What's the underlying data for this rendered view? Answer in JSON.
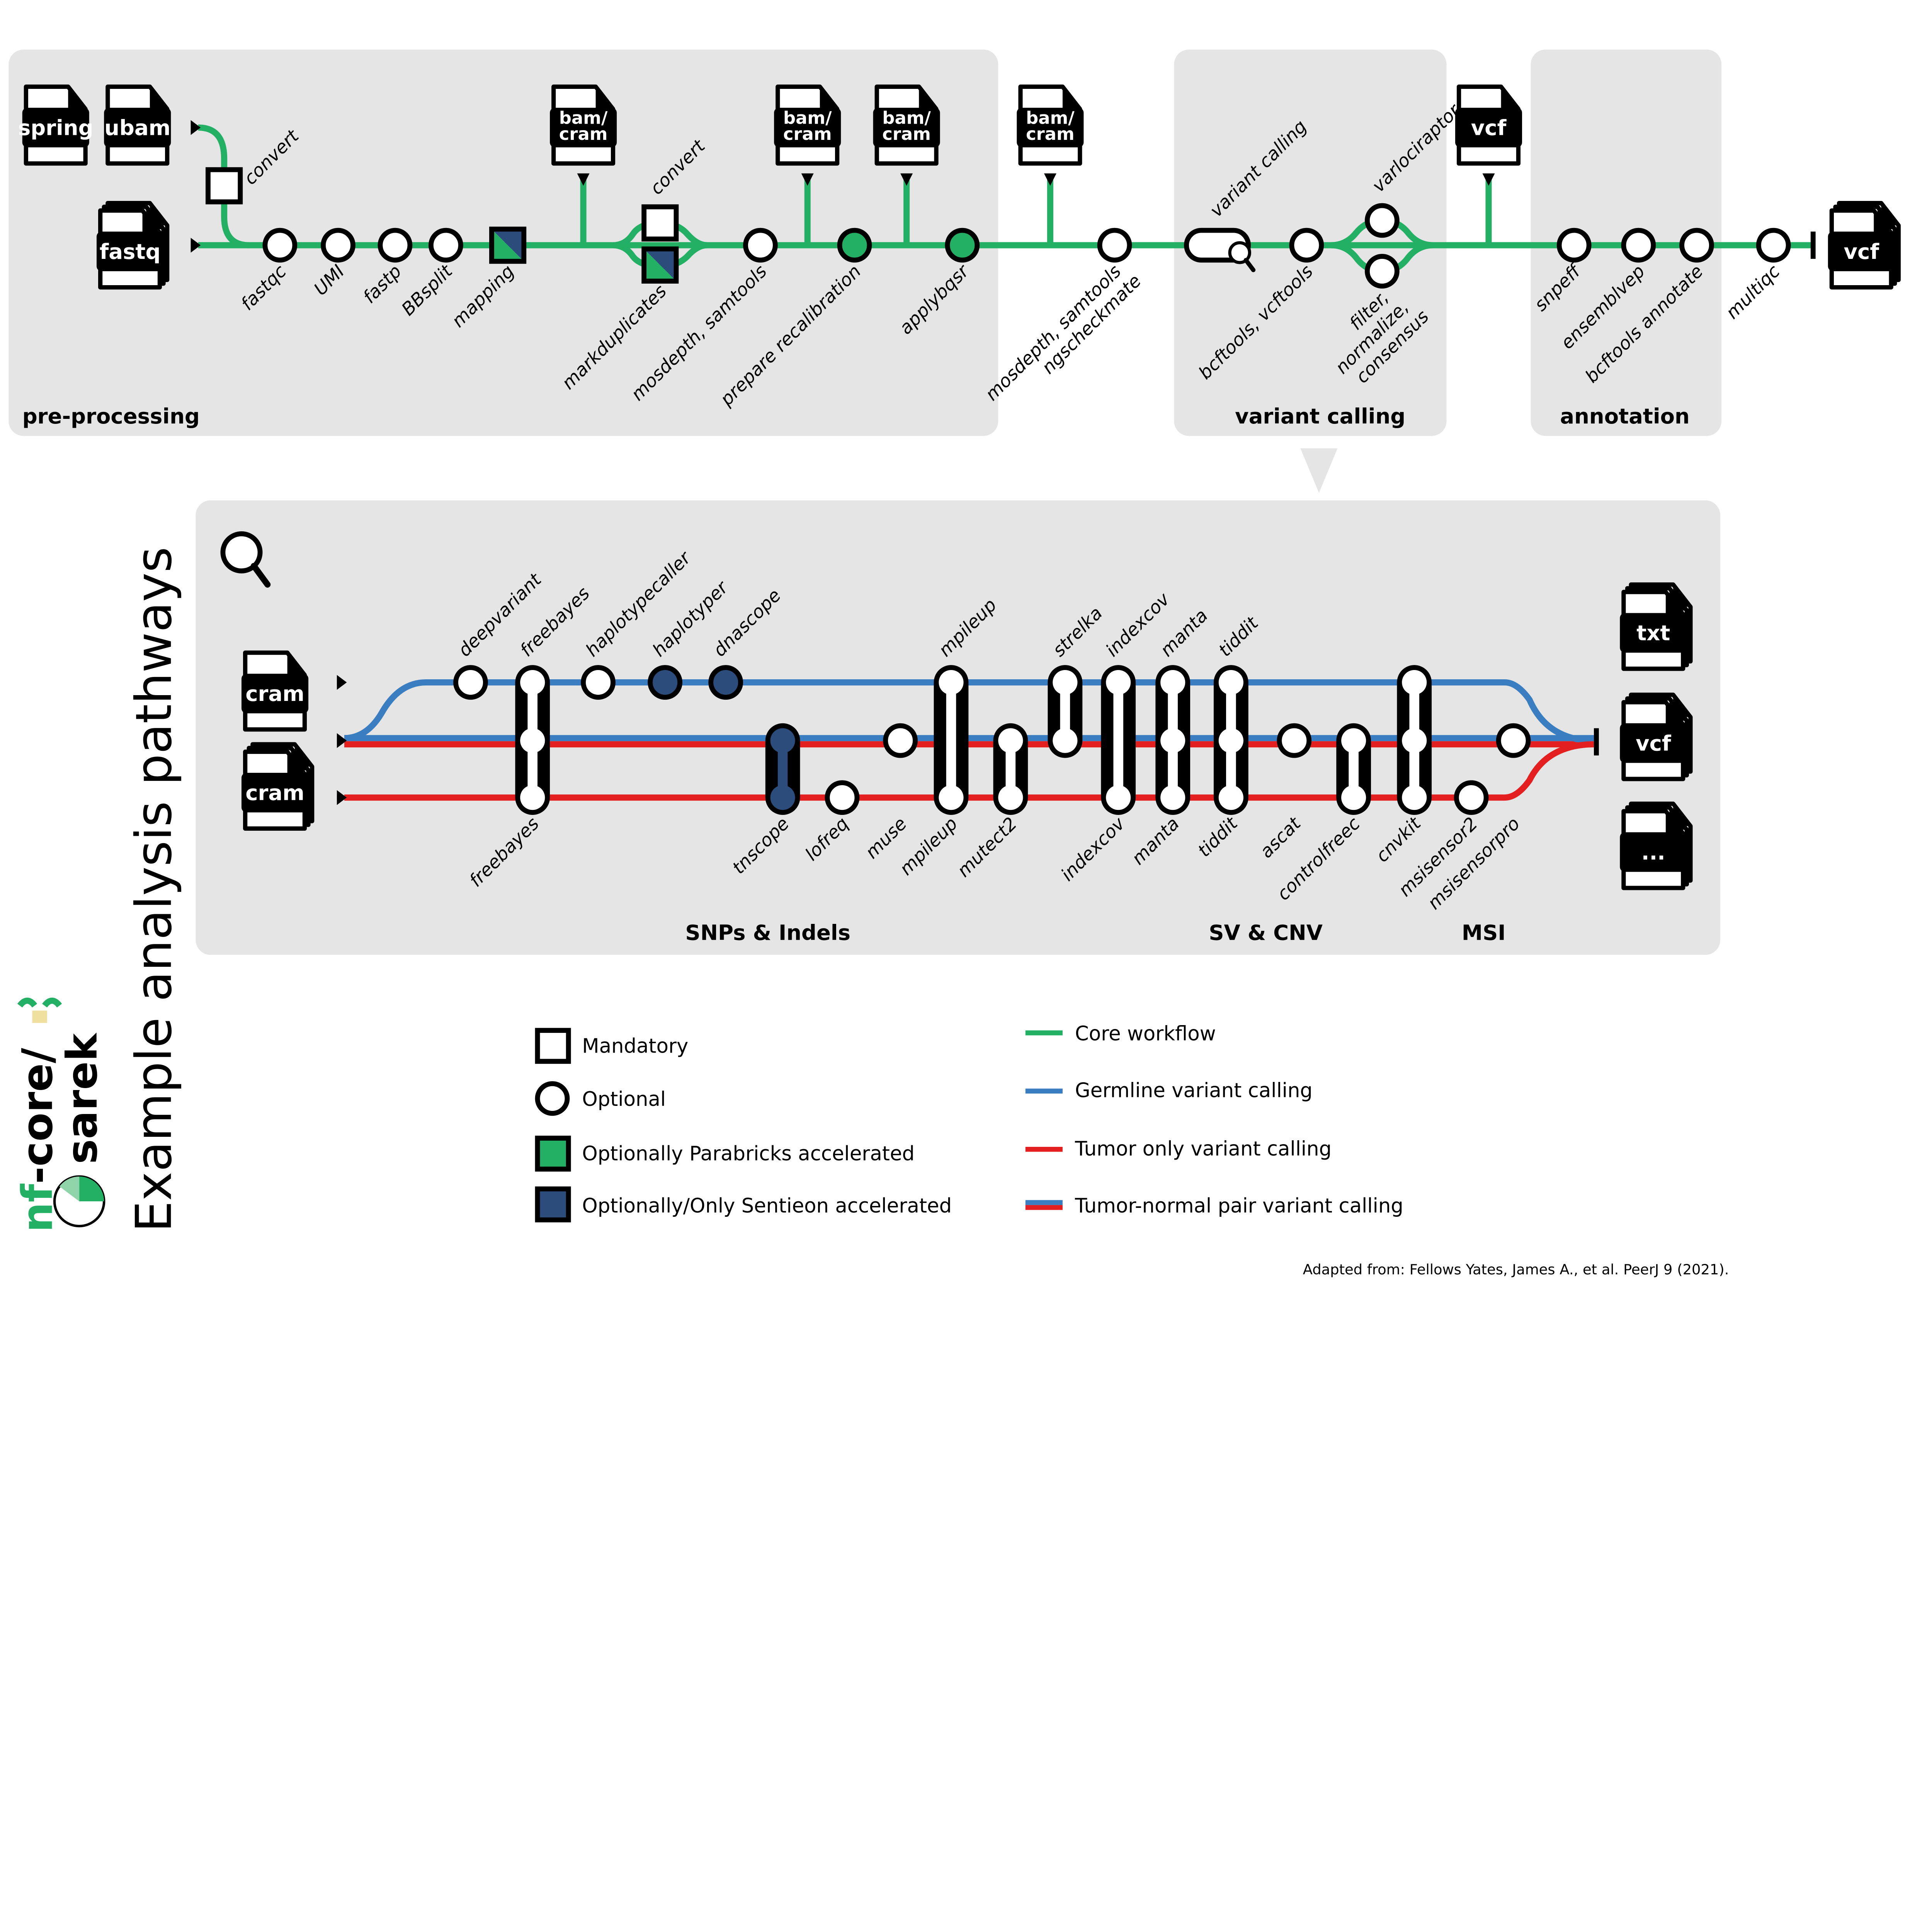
{
  "colors": {
    "core": "#24b064",
    "germline": "#3a7dc0",
    "tumor": "#e3201f",
    "sentieon": "#2c4d7c",
    "panel": "#e5e5e5"
  },
  "overview": {
    "sections": {
      "pre_processing": "pre-processing",
      "variant_calling": "variant calling",
      "annotation": "annotation"
    },
    "inputs": [
      "spring",
      "ubam",
      "fastq"
    ],
    "intermediate_files": [
      "bam/\ncram",
      "bam/\ncram",
      "bam/\ncram",
      "bam/\ncram",
      "vcf"
    ],
    "output_file": "vcf",
    "steps": [
      {
        "label": [
          "convert"
        ],
        "node": "mandatory"
      },
      {
        "label": [
          "fastqc"
        ],
        "node": "optional"
      },
      {
        "label": [
          "UMI"
        ],
        "node": "optional"
      },
      {
        "label": [
          "fastp"
        ],
        "node": "optional"
      },
      {
        "label": [
          "BBsplit"
        ],
        "node": "optional"
      },
      {
        "label": [
          "mapping"
        ],
        "node": "parabricks-sentieon"
      },
      {
        "label": [
          "convert"
        ],
        "node": "mandatory"
      },
      {
        "label": [
          "markduplicates"
        ],
        "node": "parabricks-sentieon"
      },
      {
        "label": [
          "mosdepth, samtools"
        ],
        "node": "optional"
      },
      {
        "label": [
          "prepare recalibration"
        ],
        "node": "parabricks"
      },
      {
        "label": [
          "applybqsr"
        ],
        "node": "parabricks"
      },
      {
        "label": [
          "mosdepth, samtools",
          "ngscheckmate"
        ],
        "node": "optional"
      },
      {
        "label": [
          "variant calling"
        ],
        "node": "expand"
      },
      {
        "label": [
          "bcftools, vcftools"
        ],
        "node": "optional"
      },
      {
        "label": [
          "varlociraptor"
        ],
        "node": "optional"
      },
      {
        "label": [
          "filter,",
          "normalize,",
          "consensus"
        ],
        "node": "optional"
      },
      {
        "label": [
          "snpeff"
        ],
        "node": "optional"
      },
      {
        "label": [
          "ensemblvep"
        ],
        "node": "optional"
      },
      {
        "label": [
          "bcftools annotate"
        ],
        "node": "optional"
      },
      {
        "label": [
          "multiqc"
        ],
        "node": "optional"
      }
    ]
  },
  "pathways": {
    "title": "Example analysis pathways",
    "inputs": [
      "cram",
      "cram"
    ],
    "outputs": [
      "txt",
      "vcf",
      "..."
    ],
    "sections": [
      "SNPs & Indels",
      "SV & CNV",
      "MSI"
    ],
    "labels_above": [
      "deepvariant",
      "freebayes",
      "haplotypecaller",
      "haplotyper",
      "dnascope",
      "mpileup",
      "strelka",
      "indexcov",
      "manta",
      "tiddit"
    ],
    "labels_below": [
      "freebayes",
      "tnscope",
      "lofreq",
      "muse",
      "mpileup",
      "mutect2",
      "indexcov",
      "manta",
      "tiddit",
      "ascat",
      "controlfreec",
      "cnvkit",
      "msisensor2",
      "msisensorpro"
    ]
  },
  "logo": {
    "line1": "nf-core/",
    "line2": "sarek"
  },
  "legend": {
    "nodes": [
      "Mandatory",
      "Optional",
      "Optionally Parabricks accelerated",
      "Optionally/Only Sentieon accelerated"
    ],
    "lines": [
      "Core workflow",
      "Germline variant calling",
      "Tumor only variant calling",
      "Tumor-normal pair variant calling"
    ]
  },
  "citation": "Adapted from: Fellows Yates, James A., et al.  PeerJ 9 (2021)."
}
